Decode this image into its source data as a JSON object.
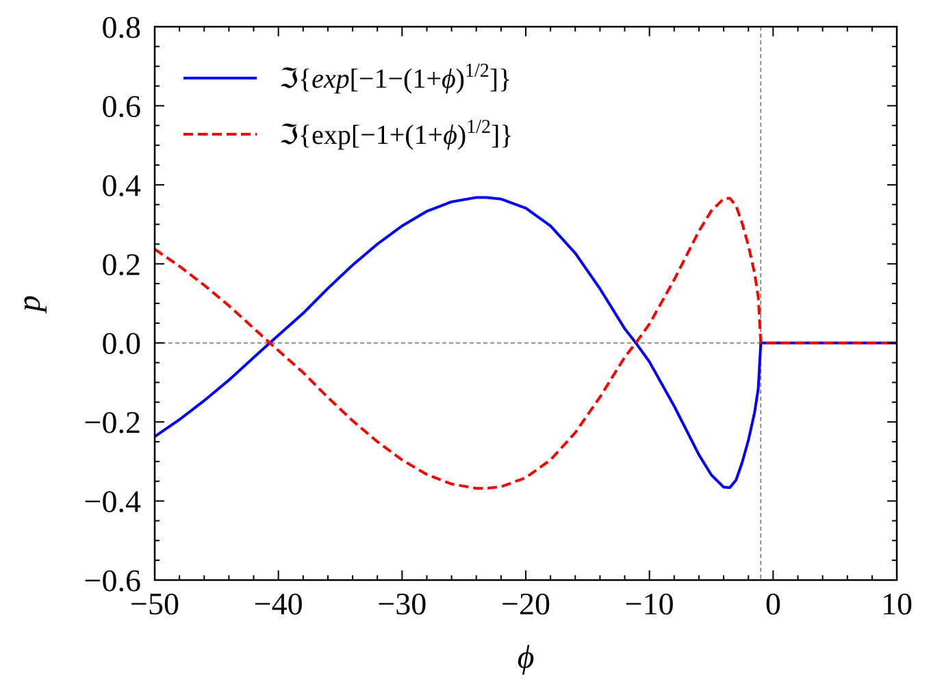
{
  "chart_data": {
    "type": "line",
    "title": "",
    "xlabel": "ϕ",
    "ylabel": "p",
    "xlim": [
      -50,
      10
    ],
    "ylim": [
      -0.6,
      0.8
    ],
    "xticks": [
      -50,
      -40,
      -30,
      -20,
      -10,
      0,
      10
    ],
    "xtick_labels": [
      "−50",
      "−40",
      "−30",
      "−20",
      "−10",
      "0",
      "10"
    ],
    "yticks": [
      -0.6,
      -0.4,
      -0.2,
      0.0,
      0.2,
      0.4,
      0.6,
      0.8
    ],
    "ytick_labels": [
      "−0.6",
      "−0.4",
      "−0.2",
      "0.0",
      "0.2",
      "0.4",
      "0.6",
      "0.8"
    ],
    "grid": false,
    "legend_position": "top-left",
    "reference_lines": [
      {
        "orientation": "horizontal",
        "value": 0.0,
        "color": "#808080",
        "style": "dashed"
      },
      {
        "orientation": "vertical",
        "value": -1.0,
        "color": "#808080",
        "style": "dashed"
      }
    ],
    "series": [
      {
        "name": "ℑ{exp[−1−(1+ϕ)^1/2]}",
        "color": "#0000ff",
        "style": "solid",
        "x": [
          -50,
          -48,
          -46,
          -44,
          -42,
          -40.7,
          -38,
          -36,
          -34,
          -32,
          -30,
          -28,
          -26,
          -24,
          -23.2,
          -22,
          -20,
          -18,
          -16,
          -14,
          -12,
          -11.1,
          -10,
          -8,
          -6,
          -5,
          -4,
          -3.5,
          -3,
          -2.5,
          -2,
          -1.5,
          -1.2,
          -1.0,
          10
        ],
        "y": [
          -0.237,
          -0.194,
          -0.146,
          -0.094,
          -0.037,
          0.0,
          0.075,
          0.138,
          0.197,
          0.25,
          0.296,
          0.333,
          0.357,
          0.368,
          0.368,
          0.364,
          0.341,
          0.296,
          0.227,
          0.137,
          0.036,
          0.0,
          -0.048,
          -0.16,
          -0.283,
          -0.334,
          -0.365,
          -0.366,
          -0.347,
          -0.302,
          -0.246,
          -0.176,
          -0.115,
          0.0,
          0.0
        ]
      },
      {
        "name": "ℑ{exp[−1+(1+ϕ)^1/2]}",
        "color": "#ff0000",
        "style": "dashed",
        "x": [
          -50,
          -48,
          -46,
          -44,
          -42,
          -40.7,
          -38,
          -36,
          -34,
          -32,
          -30,
          -28,
          -26,
          -24,
          -23.2,
          -22,
          -20,
          -18,
          -16,
          -14,
          -12,
          -11.1,
          -10,
          -8,
          -6,
          -5,
          -4,
          -3.5,
          -3,
          -2.5,
          -2,
          -1.5,
          -1.2,
          -1.0,
          10
        ],
        "y": [
          0.237,
          0.194,
          0.146,
          0.094,
          0.037,
          0.0,
          -0.075,
          -0.138,
          -0.197,
          -0.25,
          -0.296,
          -0.333,
          -0.357,
          -0.368,
          -0.368,
          -0.364,
          -0.341,
          -0.296,
          -0.227,
          -0.137,
          -0.036,
          0.0,
          0.048,
          0.16,
          0.283,
          0.334,
          0.365,
          0.366,
          0.347,
          0.302,
          0.246,
          0.176,
          0.115,
          0.0,
          0.0
        ]
      }
    ]
  },
  "legend": {
    "items": [
      {
        "label_prefix": "ℑ{",
        "label_func": "exp",
        "label_mid": "[−1−(1+",
        "label_var": "ϕ",
        "label_close": ")",
        "label_exp": "1/2",
        "label_end": "]}"
      },
      {
        "label_prefix": "ℑ{",
        "label_func": "exp",
        "label_mid": "[−1+(1+",
        "label_var": "ϕ",
        "label_close": ")",
        "label_exp": "1/2",
        "label_end": "]}"
      }
    ]
  }
}
